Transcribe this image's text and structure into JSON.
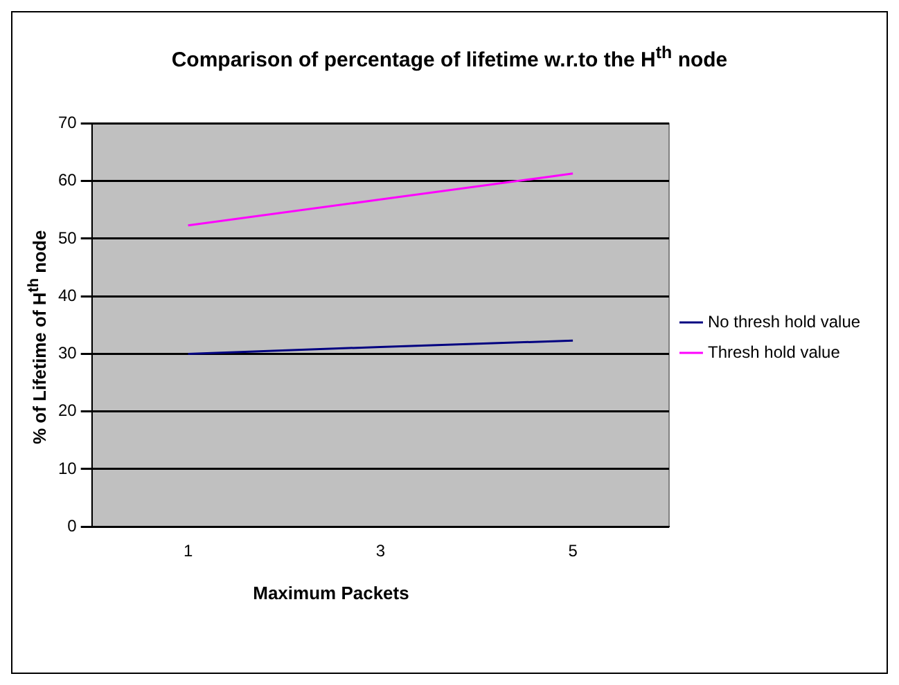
{
  "chart_data": {
    "type": "line",
    "title": "Comparison of percentage of lifetime w.r.to the H$^{th}$ node",
    "xlabel": "Maximum Packets",
    "ylabel": "% of Lifetime of H$^{th}$ node",
    "categories": [
      "1",
      "3",
      "5"
    ],
    "series": [
      {
        "name": "No thresh hold value",
        "color": "#000080",
        "values": [
          30,
          31.2,
          32.3
        ]
      },
      {
        "name": "Thresh hold value",
        "color": "#ff00ff",
        "values": [
          52.3,
          56.8,
          61.3
        ]
      }
    ],
    "ylim": [
      0,
      70
    ],
    "yticks": [
      0,
      10,
      20,
      30,
      40,
      50,
      60,
      70
    ],
    "grid": "y",
    "legend": "right",
    "marker": "none",
    "line_style": "solid"
  }
}
